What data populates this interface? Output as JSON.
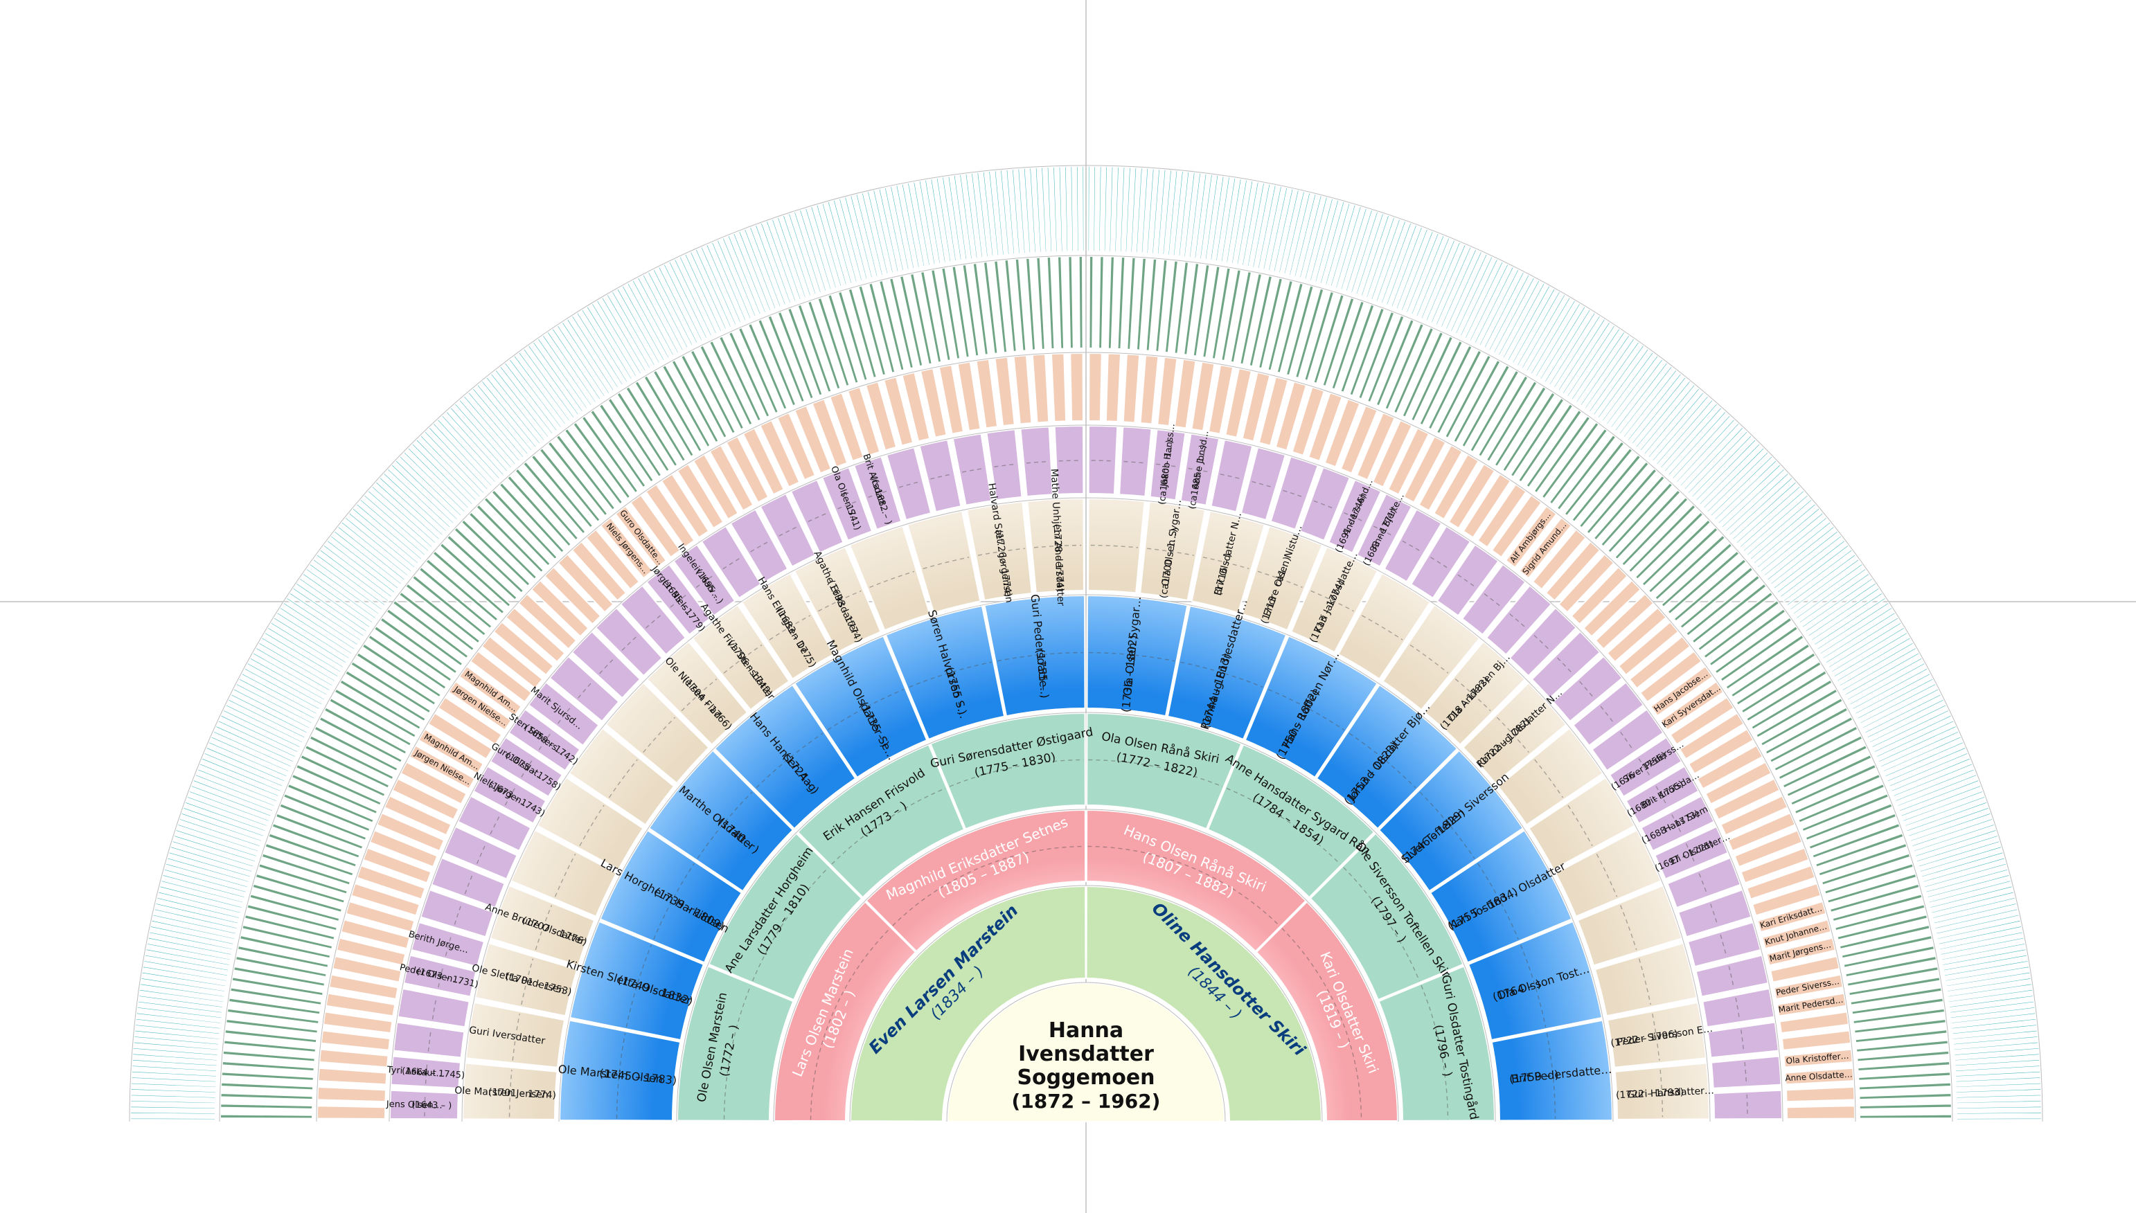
{
  "root": {
    "line1": "Hanna",
    "line2": "Ivensdatter Soggemoen",
    "line3": "(1872 – 1962)"
  },
  "colors": {
    "g1": "#c8e6b4",
    "g2": "#f9c3c8",
    "g3": "#a9dcc8",
    "g4": "#58aaf0",
    "g5": "#f4ead8",
    "g6": "#d5b6de",
    "g7": "#f4cdb6",
    "g8": "#6fa585",
    "g9": "#3fb4bf",
    "root": "#fefde8",
    "text_dark": "#0a3d7e",
    "text_light": "#ffffff"
  },
  "rings": {
    "gen1": [
      {
        "name": "Even Larsen Marstein",
        "dates": "(1834 – )"
      },
      {
        "name": "Oline Hansdotter Skiri",
        "dates": "(1844 – )"
      }
    ],
    "gen2": [
      {
        "name": "Lars Olsen Marstein",
        "dates": "(1802 – )"
      },
      {
        "name": "Magnhild Eriksdatter Setnes",
        "dates": "(1805 – 1887)"
      },
      {
        "name": "Hans Olsen Rånå Skiri",
        "dates": "(1807 – 1882)"
      },
      {
        "name": "Kari Olsdatter Skiri",
        "dates": "(1819 – )"
      }
    ],
    "gen3": [
      {
        "name": "Ole Olsen Marstein",
        "dates": "(1772 – )"
      },
      {
        "name": "Ane Larsdatter Horgheim",
        "dates": "(1779 – 1810)"
      },
      {
        "name": "Erik Hansen Frisvold",
        "dates": "(1773 – )"
      },
      {
        "name": "Guri Sørensdatter Østigaard",
        "dates": "(1775 – 1830)"
      },
      {
        "name": "Ola Olsen Rånå Skiri",
        "dates": "(1772 – 1822)"
      },
      {
        "name": "Anne Hansdatter Sygard Rån",
        "dates": "(1784 – 1854)"
      },
      {
        "name": "Ole Siversson Toftellen Skir",
        "dates": "(1797 – )"
      },
      {
        "name": "Guri Olsdatter Tostingård",
        "dates": "(1796 – )"
      }
    ],
    "gen4": [
      {
        "name": "Ole Marstein Olsen",
        "dates": "(1745 – 1783)"
      },
      {
        "name": "Kirsten Sletta Olsdatter",
        "dates": "(1749 – 1832)"
      },
      {
        "name": "Lars Horgheim Harkildsen",
        "dates": "(1739 – 1809)"
      },
      {
        "name": "Marthe Olsdatter",
        "dates": "(1740 – )"
      },
      {
        "name": "Hans Hansen Aag",
        "dates": "(1724 – )"
      },
      {
        "name": "Magnhild Olsdatter Se…",
        "dates": "(1735 – )"
      },
      {
        "name": "Søren Halvorsen S…",
        "dates": "(1755 – )"
      },
      {
        "name": "Guri Pedersdatte…",
        "dates": "(1755 – )"
      },
      {
        "name": "Ola Olsen Sygar…",
        "dates": "(1736 – 1802)"
      },
      {
        "name": "Rønnaug Endresdatter…",
        "dates": "(1744 – 1813)"
      },
      {
        "name": "Hans Roffeen Nør…",
        "dates": "(1750 – 1802)"
      },
      {
        "name": "Jørund Olsdatter Bjø…",
        "dates": "(1753 – 1823)"
      },
      {
        "name": "Siver Toftellen Siversson",
        "dates": "(1746 – 1829)"
      },
      {
        "name": "Kari Tostind… Olsdatter",
        "dates": "(1755 – 1834)"
      },
      {
        "name": "Ola Olsson Tost…",
        "dates": "(1764 – )"
      },
      {
        "name": "Brit Pedersdatte…",
        "dates": "(1759 – )"
      }
    ],
    "gen5": [
      {
        "name": "Ole Marsten Jensen",
        "dates": "(1701 – 1774)"
      },
      {
        "name": "Guri Iversdatter",
        "dates": ""
      },
      {
        "name": "Ole Sletta Pedersen",
        "dates": "(1701 – 1753)"
      },
      {
        "name": "Anne Brude Olsdatter",
        "dates": "(1707 – 1776)"
      },
      {
        "name": "",
        "dates": ""
      },
      {
        "name": "",
        "dates": ""
      },
      {
        "name": "",
        "dates": ""
      },
      {
        "name": "",
        "dates": ""
      },
      {
        "name": "Ole Nielsen Flad",
        "dates": "(1704 – 1766)"
      },
      {
        "name": "Agathe Fiva Stensdatter",
        "dates": "(1706 – 1742)"
      },
      {
        "name": "Hans Ellingsen De…",
        "dates": "(1683 – 1775)"
      },
      {
        "name": "Agathe Eriksdatter",
        "dates": "(1698 – 1774)"
      },
      {
        "name": "",
        "dates": ""
      },
      {
        "name": "",
        "dates": ""
      },
      {
        "name": "Halvard Sæt… Jørgensen",
        "dates": "(1726 – 1774)"
      },
      {
        "name": "Mathe Unhjem Andersdatter",
        "dates": "(1728 – 1774)"
      },
      {
        "name": "",
        "dates": ""
      },
      {
        "name": "Ola Olsen Sygar…",
        "dates": "(ca1700 – 1…)"
      },
      {
        "name": "Brit Olsdatter N…",
        "dates": "(1716 – )"
      },
      {
        "name": "Endre Olsen Nistu…",
        "dates": "(1713 – ca1…)"
      },
      {
        "name": "Kari Jakobsdatte…",
        "dates": "(1713 – 1774)"
      },
      {
        "name": "",
        "dates": ""
      },
      {
        "name": "",
        "dates": ""
      },
      {
        "name": "Ola Andersen Bj…",
        "dates": "(1718 – 1782)"
      },
      {
        "name": "Rønnaug Olsdatter N…",
        "dates": "(1722 – 1787)"
      },
      {
        "name": "",
        "dates": ""
      },
      {
        "name": "",
        "dates": ""
      },
      {
        "name": "",
        "dates": ""
      },
      {
        "name": "",
        "dates": ""
      },
      {
        "name": "",
        "dates": ""
      },
      {
        "name": "Peder Siversson E…",
        "dates": "(1722 – 1796)"
      },
      {
        "name": "Guri Hansdatter…",
        "dates": "(1722 – 1793)"
      }
    ],
    "gen6_left": [
      {
        "a": "Jens Olsen…",
        "b": "(1643 – )"
      },
      {
        "a": "Tyri Askaut…",
        "b": "(1664 – 1745)"
      },
      {
        "a": "Peder Olsen…",
        "b": "(1673 – 1731)"
      },
      {
        "a": "Berith Jørge…",
        "b": ""
      },
      {
        "a": "Niels Jørgen…",
        "b": "(1673 – 1743)"
      },
      {
        "a": "Guro Olsdat…",
        "b": "(1675 – 1758)"
      },
      {
        "a": "Sten Siffvers…",
        "b": "(1659 – 1742)"
      },
      {
        "a": "Marit Sjursd…",
        "b": ""
      },
      {
        "a": "Jørgen Niels…",
        "b": "(1695 – 1779)"
      },
      {
        "a": "Ingeleiv Halv…",
        "b": "(1695 – )"
      },
      {
        "a": "Ola Olsen S…",
        "b": "( – 1741)"
      },
      {
        "a": "Brit Alfsdatt…",
        "b": "(ca1682 – )"
      },
      {
        "a": "Jakob Hanss…",
        "b": "(ca1680 – 1…)"
      },
      {
        "a": "Anne Jonsd…",
        "b": "(ca1685 – 1…)"
      },
      {
        "a": "Anders And…",
        "b": "(1691 – 1746)"
      },
      {
        "a": "Anne Bjerte…",
        "b": "(1683 – 1771)"
      },
      {
        "a": "Hans Siem",
        "b": "(1688 – 1773)"
      },
      {
        "a": "Eli Olsdatter…",
        "b": "(1697 – 1775)"
      },
      {
        "a": "Siver Pederss…",
        "b": "(1676 – 1756)"
      },
      {
        "a": "Brit Knutsda…",
        "b": "(1680 – 1755)"
      }
    ],
    "gen7": [
      "Jørgen Nielse…",
      "Magnhild Am…",
      "Jørgen Nielse…",
      "Magnhild Am…",
      "Niels Jørgens…",
      "Guro Olsdatte…",
      "Alf Ambjørgs…",
      "Sigrid Amund…",
      "Hans Jacobse…",
      "Kari Syversdat…",
      "Peder Siverss…",
      "Marit Pedersd…",
      "Kari Eriksdatt…",
      "Knut Johanne…",
      "Marit Jørgens…",
      "Ola Kristoffer…",
      "Anne Olsdatte…"
    ]
  }
}
